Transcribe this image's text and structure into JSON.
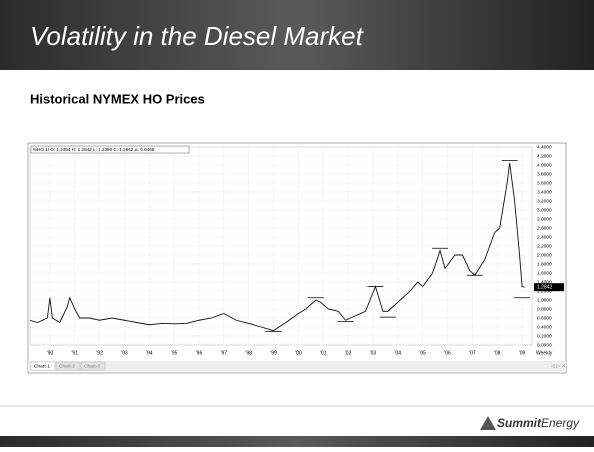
{
  "slide": {
    "title": "Volatility in the Diesel Market",
    "subtitle": "Historical NYMEX HO Prices",
    "logo_bold": "Summit",
    "logo_italic": "Energy"
  },
  "chart_data": {
    "type": "line",
    "header": "%HO 1! O: 1.2354 H: 1.2842 L: 1.2350 C: 1.2842 Δ: 0.0465",
    "x_unit_label": "Weekly",
    "tabs": [
      "Chart-1",
      "Chart-2",
      "Chart-3"
    ],
    "x": [
      1989.2,
      1989.5,
      1989.9,
      1990.0,
      1990.1,
      1990.4,
      1990.7,
      1990.8,
      1991.0,
      1991.2,
      1991.6,
      1992.0,
      1992.5,
      1993.0,
      1993.5,
      1994.0,
      1994.5,
      1995.0,
      1995.5,
      1996.0,
      1996.5,
      1997.0,
      1997.5,
      1998.0,
      1998.5,
      1999.0,
      1999.5,
      2000.0,
      2000.3,
      2000.7,
      2000.9,
      2001.2,
      2001.6,
      2001.9,
      2002.3,
      2002.7,
      2003.1,
      2003.4,
      2003.6,
      2004.0,
      2004.5,
      2004.8,
      2005.0,
      2005.4,
      2005.7,
      2005.9,
      2006.3,
      2006.6,
      2006.9,
      2007.1,
      2007.5,
      2007.9,
      2008.1,
      2008.4,
      2008.5,
      2008.7,
      2008.9,
      2009.0,
      2009.1
    ],
    "series": [
      {
        "name": "HO",
        "color": "#111111",
        "values": [
          0.55,
          0.5,
          0.6,
          1.05,
          0.6,
          0.5,
          0.85,
          1.05,
          0.8,
          0.6,
          0.6,
          0.55,
          0.6,
          0.55,
          0.5,
          0.45,
          0.48,
          0.47,
          0.48,
          0.55,
          0.6,
          0.7,
          0.55,
          0.48,
          0.4,
          0.32,
          0.5,
          0.7,
          0.8,
          1.0,
          0.95,
          0.8,
          0.75,
          0.55,
          0.65,
          0.75,
          1.3,
          0.75,
          0.75,
          0.95,
          1.2,
          1.4,
          1.3,
          1.6,
          2.1,
          1.7,
          2.0,
          2.0,
          1.65,
          1.55,
          1.9,
          2.5,
          2.6,
          3.6,
          4.05,
          3.2,
          2.0,
          1.3,
          1.2842
        ]
      }
    ],
    "level_marks": [
      {
        "x": 1999.0,
        "value": 0.3
      },
      {
        "x": 2000.7,
        "value": 1.05
      },
      {
        "x": 2001.9,
        "value": 0.52
      },
      {
        "x": 2003.1,
        "value": 1.3
      },
      {
        "x": 2003.6,
        "value": 0.62
      },
      {
        "x": 2005.7,
        "value": 2.15
      },
      {
        "x": 2007.1,
        "value": 1.55
      },
      {
        "x": 2008.5,
        "value": 4.1
      },
      {
        "x": 2009.0,
        "value": 1.05
      }
    ],
    "xlim": [
      1989.2,
      2009.4
    ],
    "xticks": [
      {
        "value": 1990,
        "label": "'90"
      },
      {
        "value": 1991,
        "label": "'91"
      },
      {
        "value": 1992,
        "label": "'92"
      },
      {
        "value": 1993,
        "label": "'93"
      },
      {
        "value": 1994,
        "label": "'94"
      },
      {
        "value": 1995,
        "label": "'95"
      },
      {
        "value": 1996,
        "label": "'96"
      },
      {
        "value": 1997,
        "label": "'97"
      },
      {
        "value": 1998,
        "label": "'98"
      },
      {
        "value": 1999,
        "label": "'99"
      },
      {
        "value": 2000,
        "label": "'00"
      },
      {
        "value": 2001,
        "label": "'01"
      },
      {
        "value": 2002,
        "label": "'02"
      },
      {
        "value": 2003,
        "label": "'03"
      },
      {
        "value": 2004,
        "label": "'04"
      },
      {
        "value": 2005,
        "label": "'05"
      },
      {
        "value": 2006,
        "label": "'06"
      },
      {
        "value": 2007,
        "label": "'07"
      },
      {
        "value": 2008,
        "label": "'08"
      },
      {
        "value": 2009,
        "label": "'09"
      }
    ],
    "ylim": [
      0,
      4.4
    ],
    "yticks": [
      {
        "value": 0,
        "label": "0.0000"
      },
      {
        "value": 0.2,
        "label": "0.2000"
      },
      {
        "value": 0.4,
        "label": "0.4000"
      },
      {
        "value": 0.6,
        "label": "0.6000"
      },
      {
        "value": 0.8,
        "label": "0.8000"
      },
      {
        "value": 1.0,
        "label": "1.0000"
      },
      {
        "value": 1.2,
        "label": "1.2000"
      },
      {
        "value": 1.4,
        "label": "1.4000"
      },
      {
        "value": 1.6,
        "label": "1.6000"
      },
      {
        "value": 1.8,
        "label": "1.8000"
      },
      {
        "value": 2.0,
        "label": "2.0000"
      },
      {
        "value": 2.2,
        "label": "2.2000"
      },
      {
        "value": 2.4,
        "label": "2.4000"
      },
      {
        "value": 2.6,
        "label": "2.6000"
      },
      {
        "value": 2.8,
        "label": "2.8000"
      },
      {
        "value": 3.0,
        "label": "3.0000"
      },
      {
        "value": 3.2,
        "label": "3.2000"
      },
      {
        "value": 3.4,
        "label": "3.4000"
      },
      {
        "value": 3.6,
        "label": "3.6000"
      },
      {
        "value": 3.8,
        "label": "3.8000"
      },
      {
        "value": 4.0,
        "label": "4.0000"
      },
      {
        "value": 4.2,
        "label": "4.2000"
      },
      {
        "value": 4.4,
        "label": "4.4000"
      }
    ],
    "grid": true
  }
}
